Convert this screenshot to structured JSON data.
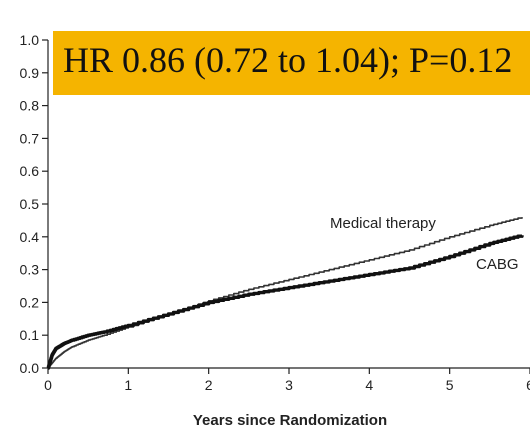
{
  "chart_data": {
    "type": "line",
    "annotation": "HR 0.86 (0.72 to 1.04); P=0.12",
    "annotation_color": "#f5b400",
    "xlabel": "Years since Randomization",
    "ylabel": "",
    "xlim": [
      0,
      6
    ],
    "ylim": [
      0,
      1.0
    ],
    "x_ticks": [
      "0",
      "1",
      "2",
      "3",
      "4",
      "5",
      "6"
    ],
    "y_ticks": [
      "0.0",
      "0.1",
      "0.2",
      "0.3",
      "0.4",
      "0.5",
      "0.6",
      "0.7",
      "0.8",
      "0.9",
      "1.0"
    ],
    "grid": false,
    "series": [
      {
        "name": "Medical therapy",
        "color": "#333333",
        "line_weight": "thin",
        "x": [
          0,
          0.05,
          0.1,
          0.2,
          0.3,
          0.5,
          0.7,
          1.0,
          1.5,
          2.0,
          2.5,
          3.0,
          3.5,
          4.0,
          4.5,
          5.0,
          5.5,
          5.9
        ],
        "y": [
          0,
          0.015,
          0.03,
          0.05,
          0.065,
          0.085,
          0.1,
          0.125,
          0.165,
          0.205,
          0.24,
          0.27,
          0.3,
          0.33,
          0.36,
          0.4,
          0.435,
          0.46
        ]
      },
      {
        "name": "CABG",
        "color": "#111111",
        "line_weight": "thick",
        "x": [
          0,
          0.05,
          0.1,
          0.2,
          0.3,
          0.5,
          0.7,
          1.0,
          1.5,
          2.0,
          2.5,
          3.0,
          3.5,
          4.0,
          4.5,
          5.0,
          5.5,
          5.9
        ],
        "y": [
          0,
          0.04,
          0.06,
          0.075,
          0.085,
          0.1,
          0.11,
          0.13,
          0.165,
          0.2,
          0.225,
          0.245,
          0.265,
          0.285,
          0.305,
          0.34,
          0.38,
          0.405
        ]
      }
    ]
  }
}
